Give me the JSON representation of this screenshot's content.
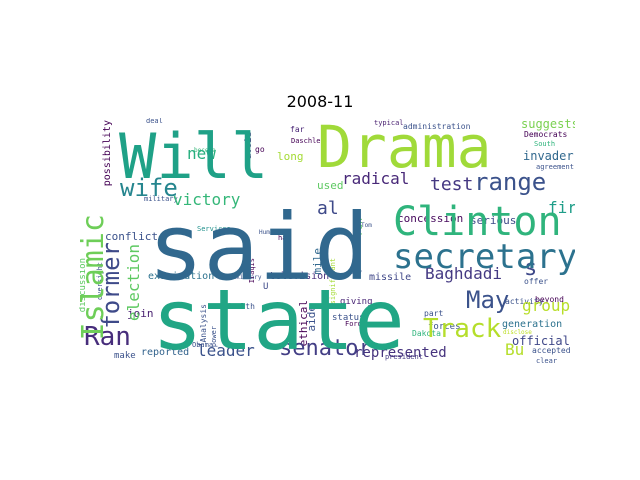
{
  "title": "2008-11",
  "words": [
    {
      "text": "said",
      "color": "#31688e"
    },
    {
      "text": "state",
      "color": "#21a685"
    },
    {
      "text": "Drama",
      "color": "#a0da39"
    },
    {
      "text": "Will",
      "color": "#1fa187"
    },
    {
      "text": "Clinton",
      "color": "#2fb47c"
    },
    {
      "text": "secretary",
      "color": "#2c728e"
    },
    {
      "text": "range",
      "color": "#3b528b"
    },
    {
      "text": "Islamic",
      "color": "#6ece58"
    },
    {
      "text": "wife",
      "color": "#25858e"
    },
    {
      "text": "former",
      "color": "#3e4a89"
    },
    {
      "text": "Track",
      "color": "#b5de2b"
    },
    {
      "text": "May",
      "color": "#3b528b"
    },
    {
      "text": "Ran",
      "color": "#472d7b"
    },
    {
      "text": "senator",
      "color": "#433e85"
    },
    {
      "text": "s",
      "color": "#3e4989"
    },
    {
      "text": "victory",
      "color": "#35b779"
    },
    {
      "text": "radical",
      "color": "#482878"
    },
    {
      "text": "election",
      "color": "#5ec962"
    },
    {
      "text": "test",
      "color": "#453882"
    },
    {
      "text": "Baghdadi",
      "color": "#443983"
    },
    {
      "text": "al",
      "color": "#3e4989"
    },
    {
      "text": "fired",
      "color": "#1f9e89"
    },
    {
      "text": "new",
      "color": "#29af7f"
    },
    {
      "text": "group",
      "color": "#b8de29"
    },
    {
      "text": "leader",
      "color": "#3b528b"
    },
    {
      "text": "represented",
      "color": "#46337e"
    },
    {
      "text": "Bu",
      "color": "#b5de2b"
    },
    {
      "text": "suggests",
      "color": "#7ad151"
    },
    {
      "text": "invader",
      "color": "#31688e"
    },
    {
      "text": "possibility",
      "color": "#440154"
    },
    {
      "text": "conflict",
      "color": "#3b528b"
    },
    {
      "text": "long",
      "color": "#a5db36"
    },
    {
      "text": "used",
      "color": "#5ec962"
    },
    {
      "text": "concession",
      "color": "#46085c"
    },
    {
      "text": "serious",
      "color": "#3e4a89"
    },
    {
      "text": "official",
      "color": "#3f4788"
    },
    {
      "text": "generation",
      "color": "#2c728e"
    },
    {
      "text": "examination",
      "color": "#2c728e"
    },
    {
      "text": "television",
      "color": "#472d7b"
    },
    {
      "text": "missile",
      "color": "#3f4788"
    },
    {
      "text": "join",
      "color": "#481f70"
    },
    {
      "text": "ethical",
      "color": "#440154"
    },
    {
      "text": "mile",
      "color": "#31688e"
    },
    {
      "text": "aide",
      "color": "#3b528b"
    },
    {
      "text": "reported",
      "color": "#33638d"
    },
    {
      "text": "make",
      "color": "#3b528b"
    },
    {
      "text": "run",
      "color": "#5ec962"
    },
    {
      "text": "avoid",
      "color": "#472c7a"
    },
    {
      "text": "go",
      "color": "#440154"
    },
    {
      "text": "far",
      "color": "#482475"
    },
    {
      "text": "Daschle",
      "color": "#440154"
    },
    {
      "text": "administration",
      "color": "#3b528b"
    },
    {
      "text": "president",
      "color": "#443983"
    },
    {
      "text": "typical",
      "color": "#481f70"
    },
    {
      "text": "Democrats",
      "color": "#440154"
    },
    {
      "text": "South",
      "color": "#2fb47c"
    },
    {
      "text": "agreement",
      "color": "#3b528b"
    },
    {
      "text": "Tom",
      "color": "#3b528b"
    },
    {
      "text": "Human",
      "color": "#3b528b"
    },
    {
      "text": "ha",
      "color": "#440154"
    },
    {
      "text": "U",
      "color": "#3e4a89"
    },
    {
      "text": "Health",
      "color": "#3b528b"
    },
    {
      "text": "Analysis",
      "color": "#3b528b"
    },
    {
      "text": "Services",
      "color": "#21918c"
    },
    {
      "text": "Iraqis",
      "color": "#440154"
    },
    {
      "text": "Auxiliary",
      "color": "#3b528b"
    },
    {
      "text": "way",
      "color": "#3b528b"
    },
    {
      "text": "significant",
      "color": "#a5db36"
    },
    {
      "text": "giving",
      "color": "#482475"
    },
    {
      "text": "status",
      "color": "#3b528b"
    },
    {
      "text": "Fordham",
      "color": "#440154"
    },
    {
      "text": "part",
      "color": "#3b528b"
    },
    {
      "text": "forces",
      "color": "#3b528b"
    },
    {
      "text": "Dakota",
      "color": "#2fb47c"
    },
    {
      "text": "activity",
      "color": "#3b528b"
    },
    {
      "text": "beyond",
      "color": "#440154"
    },
    {
      "text": "offer",
      "color": "#3b528b"
    },
    {
      "text": "accepted",
      "color": "#3b528b"
    },
    {
      "text": "clear",
      "color": "#3b528b"
    },
    {
      "text": "discussion",
      "color": "#5ec962"
    },
    {
      "text": "oversight",
      "color": "#3b528b"
    },
    {
      "text": "military",
      "color": "#3b528b"
    },
    {
      "text": "Obama",
      "color": "#3b528b"
    },
    {
      "text": "power",
      "color": "#3b528b"
    },
    {
      "text": "become",
      "color": "#35b779"
    },
    {
      "text": "deal",
      "color": "#3b528b"
    },
    {
      "text": "disclose",
      "color": "#bddf26"
    }
  ]
}
